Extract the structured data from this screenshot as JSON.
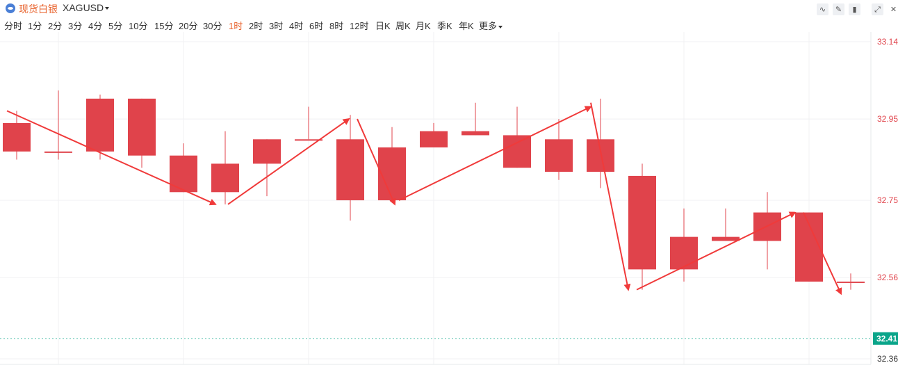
{
  "header": {
    "name": "现货白银",
    "code": "XAGUSD"
  },
  "toolbar": {
    "icons": [
      "line-chart-icon",
      "draw-pen-icon",
      "candle-style-icon",
      "fullscreen-icon",
      "close-icon"
    ]
  },
  "periods": [
    "分时",
    "1分",
    "2分",
    "3分",
    "4分",
    "5分",
    "10分",
    "15分",
    "20分",
    "30分",
    "1时",
    "2时",
    "3时",
    "4时",
    "6时",
    "8时",
    "12时",
    "日K",
    "周K",
    "月K",
    "季K",
    "年K",
    "更多"
  ],
  "active_period": "1时",
  "colors": {
    "up": "#e0434b",
    "down": "#0aa58a",
    "arrow": "#f03a3a",
    "accent": "#e8622c"
  },
  "chart_data": {
    "type": "candlestick",
    "symbol": "XAGUSD",
    "interval": "1H",
    "y_ticks": [
      "33.14",
      "32.95",
      "32.75",
      "32.56",
      "32.36"
    ],
    "ylim": [
      32.36,
      33.14
    ],
    "current_price": "32.41",
    "candles": [
      {
        "o": 32.87,
        "h": 32.97,
        "l": 32.85,
        "c": 32.94
      },
      {
        "o": 32.87,
        "h": 33.02,
        "l": 32.85,
        "c": 32.87
      },
      {
        "o": 32.87,
        "h": 33.01,
        "l": 32.85,
        "c": 33.0
      },
      {
        "o": 32.86,
        "h": 33.0,
        "l": 32.83,
        "c": 33.0
      },
      {
        "o": 32.77,
        "h": 32.89,
        "l": 32.77,
        "c": 32.86
      },
      {
        "o": 32.77,
        "h": 32.92,
        "l": 32.74,
        "c": 32.84
      },
      {
        "o": 32.84,
        "h": 32.9,
        "l": 32.76,
        "c": 32.9
      },
      {
        "o": 32.9,
        "h": 32.98,
        "l": 32.9,
        "c": 32.9
      },
      {
        "o": 32.75,
        "h": 32.96,
        "l": 32.7,
        "c": 32.9
      },
      {
        "o": 32.75,
        "h": 32.93,
        "l": 32.75,
        "c": 32.88
      },
      {
        "o": 32.88,
        "h": 32.94,
        "l": 32.88,
        "c": 32.92
      },
      {
        "o": 32.91,
        "h": 32.99,
        "l": 32.91,
        "c": 32.92
      },
      {
        "o": 32.83,
        "h": 32.98,
        "l": 32.83,
        "c": 32.91
      },
      {
        "o": 32.82,
        "h": 32.95,
        "l": 32.8,
        "c": 32.9
      },
      {
        "o": 32.82,
        "h": 33.0,
        "l": 32.78,
        "c": 32.9
      },
      {
        "o": 32.58,
        "h": 32.84,
        "l": 32.53,
        "c": 32.81
      },
      {
        "o": 32.58,
        "h": 32.73,
        "l": 32.55,
        "c": 32.66
      },
      {
        "o": 32.65,
        "h": 32.73,
        "l": 32.65,
        "c": 32.66
      },
      {
        "o": 32.65,
        "h": 32.77,
        "l": 32.58,
        "c": 32.72
      },
      {
        "o": 32.55,
        "h": 32.72,
        "l": 32.55,
        "c": 32.72
      },
      {
        "o": 32.55,
        "h": 32.57,
        "l": 32.53,
        "c": 32.55
      }
    ],
    "annotations": [
      {
        "from": [
          0,
          32.97
        ],
        "to": [
          5.0,
          32.74
        ]
      },
      {
        "from": [
          5.3,
          32.74
        ],
        "to": [
          8.2,
          32.95
        ]
      },
      {
        "from": [
          8.4,
          32.95
        ],
        "to": [
          9.3,
          32.74
        ]
      },
      {
        "from": [
          9.4,
          32.75
        ],
        "to": [
          14.0,
          32.98
        ]
      },
      {
        "from": [
          14.0,
          32.99
        ],
        "to": [
          14.9,
          32.53
        ]
      },
      {
        "from": [
          15.1,
          32.53
        ],
        "to": [
          18.9,
          32.72
        ]
      },
      {
        "from": [
          19.1,
          32.72
        ],
        "to": [
          20.0,
          32.52
        ]
      }
    ]
  }
}
